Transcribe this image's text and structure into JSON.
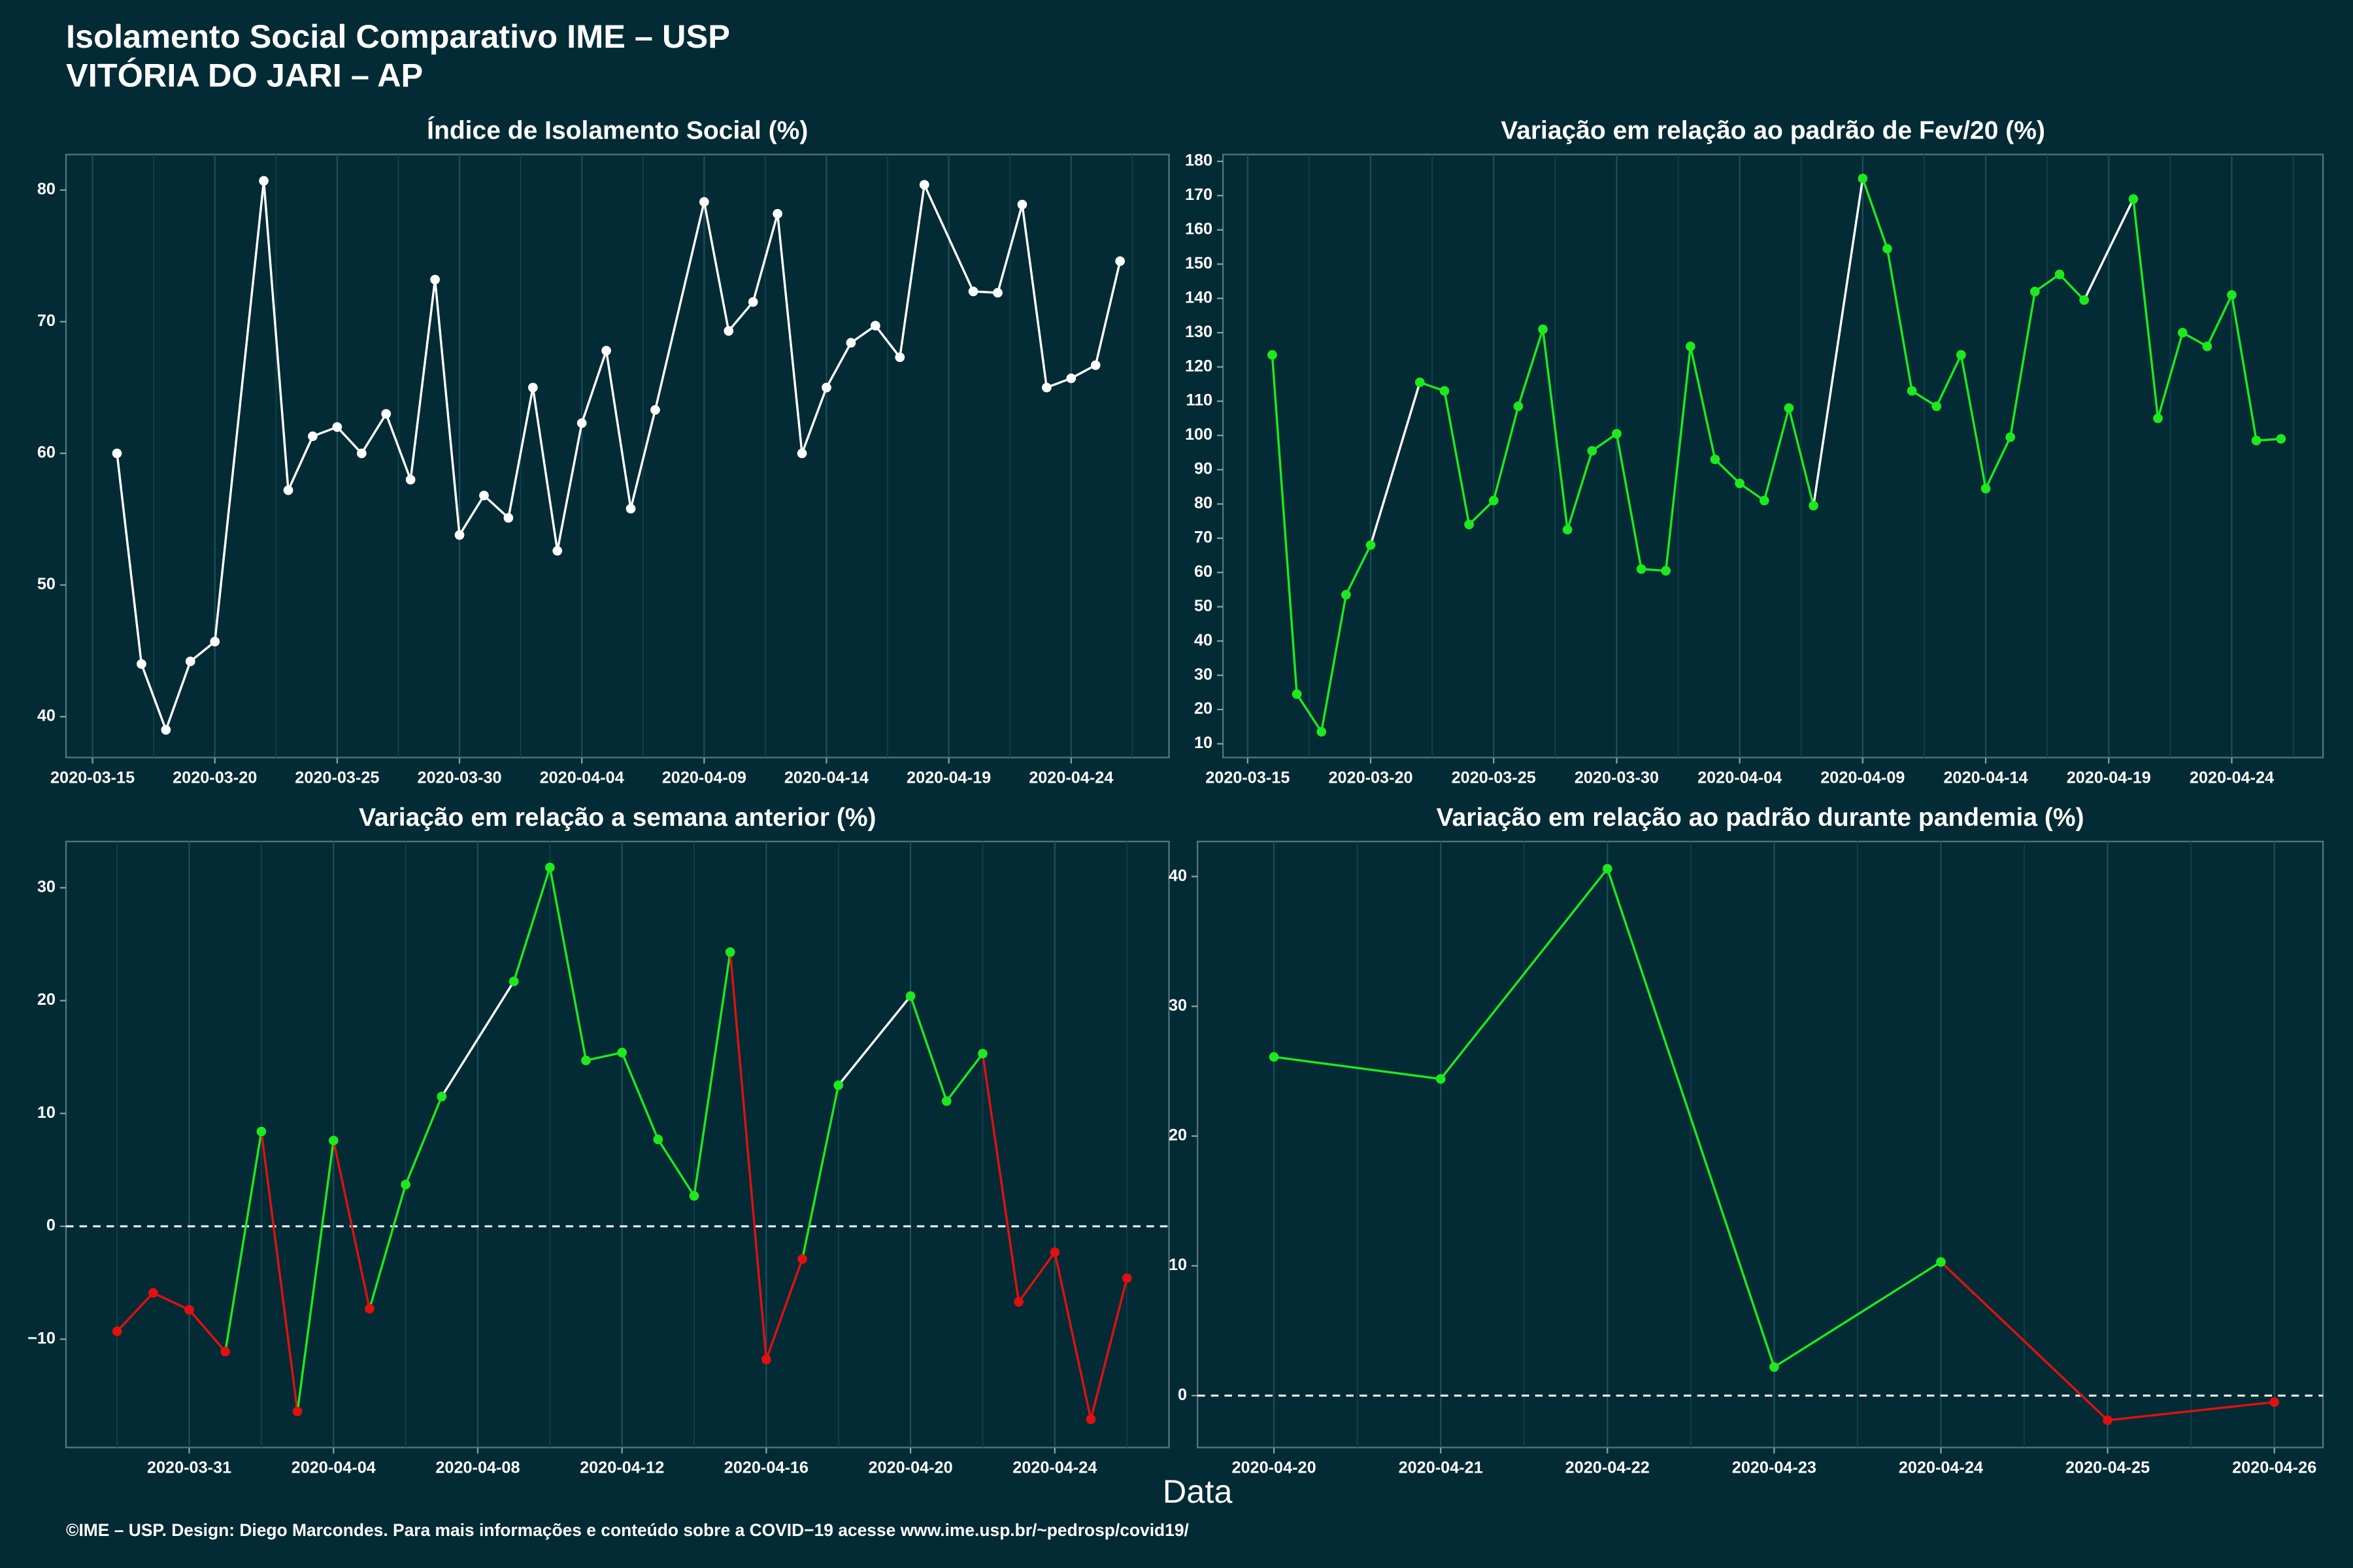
{
  "header": {
    "title": "Isolamento Social Comparativo IME – USP",
    "subtitle": "VITÓRIA DO JARI – AP"
  },
  "xlabel": "Data",
  "footer": "©IME – USP. Design: Diego Marcondes. Para mais informações e conteúdo sobre a COVID−19 acesse www.ime.usp.br/~pedrosp/covid19/",
  "chart_data": [
    {
      "type": "line",
      "title": "Índice de Isolamento Social (%)",
      "x": [
        "2020-03-16",
        "2020-03-17",
        "2020-03-18",
        "2020-03-19",
        "2020-03-20",
        "2020-03-22",
        "2020-03-23",
        "2020-03-24",
        "2020-03-25",
        "2020-03-26",
        "2020-03-27",
        "2020-03-28",
        "2020-03-29",
        "2020-03-30",
        "2020-03-31",
        "2020-04-01",
        "2020-04-02",
        "2020-04-03",
        "2020-04-04",
        "2020-04-05",
        "2020-04-06",
        "2020-04-07",
        "2020-04-09",
        "2020-04-10",
        "2020-04-11",
        "2020-04-12",
        "2020-04-13",
        "2020-04-14",
        "2020-04-15",
        "2020-04-16",
        "2020-04-17",
        "2020-04-18",
        "2020-04-20",
        "2020-04-21",
        "2020-04-22",
        "2020-04-23",
        "2020-04-24",
        "2020-04-25",
        "2020-04-26"
      ],
      "values": [
        60,
        44,
        39,
        44.2,
        45.7,
        80.7,
        57.2,
        61.3,
        62,
        60,
        63,
        58,
        73.2,
        53.8,
        56.8,
        55.1,
        65,
        52.6,
        62.3,
        67.8,
        55.8,
        63.3,
        79.1,
        69.3,
        71.5,
        78.2,
        60,
        65,
        68.4,
        69.7,
        67.3,
        80.4,
        72.3,
        72.2,
        78.9,
        65,
        65.7,
        66.7,
        74.6
      ],
      "color": "#ffffff",
      "negative_color": "#ffffff",
      "gap_color": "#ffffff",
      "xlim": [
        "2020-03-13T22:00",
        "2020-04-28T00:00"
      ],
      "xticks": [
        "2020-03-15",
        "2020-03-20",
        "2020-03-25",
        "2020-03-30",
        "2020-04-04",
        "2020-04-09",
        "2020-04-14",
        "2020-04-19",
        "2020-04-24"
      ],
      "ylim": [
        36.9,
        82.7
      ],
      "yticks": [
        40,
        50,
        60,
        70,
        80
      ],
      "grid": "x"
    },
    {
      "type": "line",
      "title": "Variação em relação ao padrão de Fev/20 (%)",
      "x": [
        "2020-03-16",
        "2020-03-17",
        "2020-03-18",
        "2020-03-19",
        "2020-03-20",
        "2020-03-22",
        "2020-03-23",
        "2020-03-24",
        "2020-03-25",
        "2020-03-26",
        "2020-03-27",
        "2020-03-28",
        "2020-03-29",
        "2020-03-30",
        "2020-03-31",
        "2020-04-01",
        "2020-04-02",
        "2020-04-03",
        "2020-04-04",
        "2020-04-05",
        "2020-04-06",
        "2020-04-07",
        "2020-04-09",
        "2020-04-10",
        "2020-04-11",
        "2020-04-12",
        "2020-04-13",
        "2020-04-14",
        "2020-04-15",
        "2020-04-16",
        "2020-04-17",
        "2020-04-18",
        "2020-04-20",
        "2020-04-21",
        "2020-04-22",
        "2020-04-23",
        "2020-04-24",
        "2020-04-25",
        "2020-04-26"
      ],
      "values": [
        123.5,
        24.5,
        13.5,
        53.5,
        68,
        115.5,
        113,
        74,
        81,
        108.5,
        131,
        72.5,
        95.5,
        100.5,
        61,
        60.5,
        126,
        93,
        86,
        81,
        108,
        79.5,
        175,
        154.5,
        113,
        108.5,
        123.5,
        84.5,
        99.5,
        142,
        147,
        139.5,
        169,
        105,
        130,
        126,
        141,
        98.5,
        99
      ],
      "color": "#1ee81e",
      "negative_color": "#e01010",
      "gap_color": "#ffffff",
      "xlim": [
        "2020-03-14T00:00",
        "2020-04-27T17:00"
      ],
      "xticks": [
        "2020-03-15",
        "2020-03-20",
        "2020-03-25",
        "2020-03-30",
        "2020-04-04",
        "2020-04-09",
        "2020-04-14",
        "2020-04-19",
        "2020-04-24"
      ],
      "ylim": [
        6,
        182
      ],
      "yticks": [
        10,
        20,
        30,
        40,
        50,
        60,
        70,
        80,
        90,
        100,
        110,
        120,
        130,
        140,
        150,
        160,
        170,
        180
      ],
      "grid": "x"
    },
    {
      "type": "line",
      "title": "Variação em relação a semana anterior (%)",
      "x": [
        "2020-03-29",
        "2020-03-30",
        "2020-03-31",
        "2020-04-01",
        "2020-04-02",
        "2020-04-03",
        "2020-04-04",
        "2020-04-05",
        "2020-04-06",
        "2020-04-07",
        "2020-04-09",
        "2020-04-10",
        "2020-04-11",
        "2020-04-12",
        "2020-04-13",
        "2020-04-14",
        "2020-04-15",
        "2020-04-16",
        "2020-04-17",
        "2020-04-18",
        "2020-04-20",
        "2020-04-21",
        "2020-04-22",
        "2020-04-23",
        "2020-04-24",
        "2020-04-25",
        "2020-04-26"
      ],
      "values": [
        -9.3,
        -5.9,
        -7.4,
        -11.1,
        8.4,
        -16.4,
        7.6,
        -7.3,
        3.7,
        11.5,
        21.7,
        31.8,
        14.7,
        15.4,
        7.7,
        2.7,
        24.3,
        -11.8,
        -2.9,
        12.5,
        20.4,
        11.1,
        15.3,
        -6.7,
        -2.3,
        -17.1,
        -4.6
      ],
      "color": "#1ee81e",
      "negative_color": "#e01010",
      "gap_color": "#ffffff",
      "xlim": [
        "2020-03-27T14:00",
        "2020-04-27T04:00"
      ],
      "xticks": [
        "2020-03-31",
        "2020-04-04",
        "2020-04-08",
        "2020-04-12",
        "2020-04-16",
        "2020-04-20",
        "2020-04-24"
      ],
      "ylim": [
        -19.6,
        34.1
      ],
      "yticks": [
        {
          "value": -10,
          "label": "−10"
        },
        0,
        10,
        20,
        30
      ],
      "grid": "x",
      "reference_line": 0
    },
    {
      "type": "line",
      "title": "Variação em relação ao padrão durante pandemia (%)",
      "x": [
        "2020-04-20",
        "2020-04-21",
        "2020-04-22",
        "2020-04-23",
        "2020-04-24",
        "2020-04-25",
        "2020-04-26"
      ],
      "values": [
        26.1,
        24.4,
        40.6,
        2.2,
        10.3,
        -1.9,
        -0.5
      ],
      "color": "#1ee81e",
      "negative_color": "#e01010",
      "gap_color": "#ffffff",
      "xlim": [
        "2020-04-19T13:00",
        "2020-04-26T07:00"
      ],
      "xticks": [
        "2020-04-20",
        "2020-04-21",
        "2020-04-22",
        "2020-04-23",
        "2020-04-24",
        "2020-04-25",
        "2020-04-26"
      ],
      "ylim": [
        -4.0,
        42.7
      ],
      "yticks": [
        0,
        10,
        20,
        30,
        40
      ],
      "grid": "x",
      "reference_line": 0
    }
  ]
}
